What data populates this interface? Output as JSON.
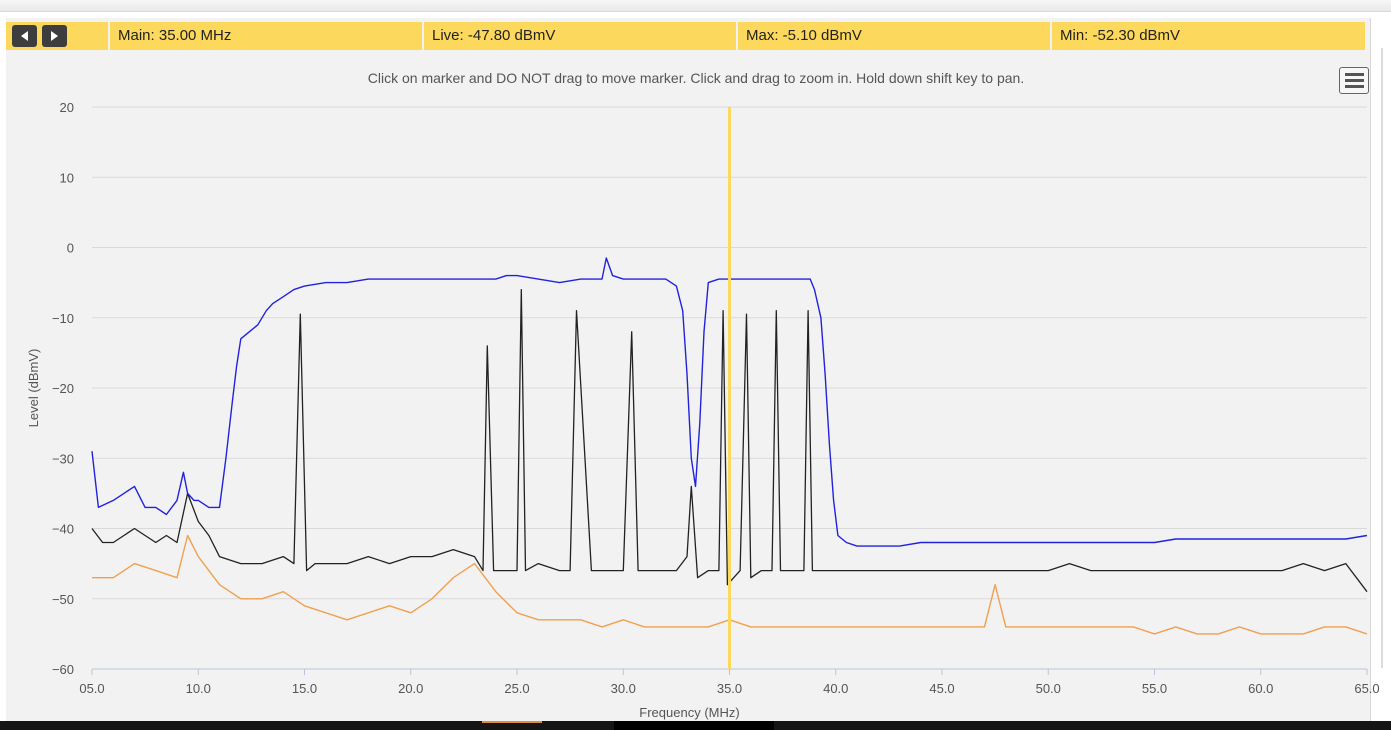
{
  "readouts": {
    "main": "Main: 35.00 MHz",
    "live": "Live: -47.80 dBmV",
    "max": "Max: -5.10 dBmV",
    "min": "Min: -52.30 dBmV"
  },
  "hint": "Click on marker and DO NOT drag to move marker. Click and drag to zoom in. Hold down shift key to pan.",
  "icons": {
    "prev": "chevron-left-icon",
    "next": "chevron-right-icon",
    "menu": "hamburger-menu-icon"
  },
  "chart_data": {
    "type": "line",
    "xlabel": "Frequency (MHz)",
    "ylabel": "Level (dBmV)",
    "xlim": [
      5,
      65
    ],
    "ylim": [
      -60,
      20
    ],
    "x_ticks": [
      5,
      10,
      15,
      20,
      25,
      30,
      35,
      40,
      45,
      50,
      55,
      60,
      65
    ],
    "x_tick_labels": [
      "05.0",
      "10.0",
      "15.0",
      "20.0",
      "25.0",
      "30.0",
      "35.0",
      "40.0",
      "45.0",
      "50.0",
      "55.0",
      "60.0",
      "65.0"
    ],
    "y_ticks": [
      20,
      10,
      0,
      -10,
      -20,
      -30,
      -40,
      -50,
      -60
    ],
    "y_tick_labels": [
      "20",
      "10",
      "0",
      "−10",
      "−20",
      "−30",
      "−40",
      "−50",
      "−60"
    ],
    "grid": true,
    "marker_x": 35.0,
    "colors": {
      "max": "#2222dd",
      "live": "#222222",
      "min": "#f0a050",
      "marker": "#fcd95c"
    },
    "series": [
      {
        "role": "max",
        "x": [
          5.0,
          5.3,
          6.0,
          6.5,
          7.0,
          7.5,
          8.0,
          8.5,
          9.0,
          9.3,
          9.5,
          9.8,
          10.0,
          10.5,
          11.0,
          11.3,
          11.6,
          11.8,
          12.0,
          12.4,
          12.8,
          13.2,
          13.5,
          14.0,
          14.5,
          15.0,
          16.0,
          17.0,
          18.0,
          19.0,
          20.0,
          21.0,
          22.0,
          23.0,
          24.0,
          24.5,
          25.0,
          26.0,
          27.0,
          28.0,
          29.0,
          29.2,
          29.5,
          30.0,
          31.0,
          32.0,
          32.5,
          32.8,
          33.0,
          33.2,
          33.4,
          33.6,
          33.8,
          34.0,
          34.5,
          35.0,
          35.5,
          36.0,
          37.0,
          38.0,
          38.5,
          38.8,
          39.0,
          39.3,
          39.5,
          39.7,
          39.9,
          40.1,
          40.5,
          41.0,
          42.0,
          43.0,
          44.0,
          45.0,
          46.0,
          47.0,
          48.0,
          49.0,
          50.0,
          51.0,
          52.0,
          53.0,
          54.0,
          55.0,
          56.0,
          57.0,
          58.0,
          59.0,
          60.0,
          61.0,
          62.0,
          63.0,
          64.0,
          65.0
        ],
        "y": [
          -29,
          -37,
          -36,
          -35,
          -34,
          -37,
          -37,
          -38,
          -36,
          -32,
          -35,
          -36,
          -36,
          -37,
          -37,
          -30,
          -22,
          -17,
          -13,
          -12,
          -11,
          -9,
          -8,
          -7,
          -6,
          -5.5,
          -5,
          -5,
          -4.5,
          -4.5,
          -4.5,
          -4.5,
          -4.5,
          -4.5,
          -4.5,
          -4,
          -4,
          -4.5,
          -5,
          -4.5,
          -4.5,
          -1.5,
          -4,
          -4.5,
          -4.5,
          -4.5,
          -5.5,
          -9,
          -18,
          -30,
          -34,
          -25,
          -12,
          -5,
          -4.5,
          -4.5,
          -4.5,
          -4.5,
          -4.5,
          -4.5,
          -4.5,
          -4.5,
          -6,
          -10,
          -18,
          -28,
          -36,
          -41,
          -42,
          -42.5,
          -42.5,
          -42.5,
          -42,
          -42,
          -42,
          -42,
          -42,
          -42,
          -42,
          -42,
          -42,
          -42,
          -42,
          -42,
          -41.5,
          -41.5,
          -41.5,
          -41.5,
          -41.5,
          -41.5,
          -41.5,
          -41.5,
          -41.5,
          -41
        ]
      },
      {
        "role": "live",
        "x": [
          5.0,
          5.5,
          6.0,
          6.5,
          7.0,
          7.5,
          8.0,
          8.5,
          9.0,
          9.5,
          10.0,
          10.5,
          11.0,
          12.0,
          13.0,
          14.0,
          14.5,
          14.8,
          15.1,
          15.5,
          16.0,
          17.0,
          18.0,
          19.0,
          20.0,
          21.0,
          22.0,
          23.0,
          23.4,
          23.6,
          23.9,
          24.5,
          25.0,
          25.2,
          25.4,
          26.0,
          27.0,
          27.5,
          27.8,
          28.5,
          29.5,
          30.0,
          30.4,
          30.7,
          31.5,
          32.5,
          33.0,
          33.2,
          33.5,
          34.0,
          34.5,
          34.7,
          34.9,
          35.5,
          35.8,
          36.0,
          36.5,
          37.0,
          37.2,
          37.4,
          38.0,
          38.5,
          38.7,
          38.9,
          39.5,
          40.0,
          41.0,
          42.0,
          43.0,
          44.0,
          45.0,
          46.0,
          47.0,
          48.0,
          49.0,
          50.0,
          51.0,
          52.0,
          53.0,
          54.0,
          55.0,
          56.0,
          57.0,
          58.0,
          59.0,
          60.0,
          61.0,
          62.0,
          63.0,
          64.0,
          65.0
        ],
        "y": [
          -40,
          -42,
          -42,
          -41,
          -40,
          -41,
          -42,
          -41,
          -42,
          -35,
          -39,
          -41,
          -44,
          -45,
          -45,
          -44,
          -45,
          -9.5,
          -46,
          -45,
          -45,
          -45,
          -44,
          -45,
          -44,
          -44,
          -43,
          -44,
          -46,
          -14,
          -46,
          -46,
          -46,
          -6,
          -46,
          -45,
          -46,
          -46,
          -9,
          -46,
          -46,
          -46,
          -12,
          -46,
          -46,
          -46,
          -44,
          -34,
          -47,
          -46,
          -46,
          -9,
          -48,
          -46,
          -9.5,
          -47,
          -46,
          -46,
          -9,
          -46,
          -46,
          -46,
          -9,
          -46,
          -46,
          -46,
          -46,
          -46,
          -46,
          -46,
          -46,
          -46,
          -46,
          -46,
          -46,
          -46,
          -45,
          -46,
          -46,
          -46,
          -46,
          -46,
          -46,
          -46,
          -46,
          -46,
          -46,
          -45,
          -46,
          -45,
          -49
        ]
      },
      {
        "role": "min",
        "x": [
          5.0,
          6.0,
          7.0,
          8.0,
          9.0,
          9.5,
          10.0,
          11.0,
          12.0,
          13.0,
          14.0,
          15.0,
          16.0,
          17.0,
          18.0,
          19.0,
          20.0,
          21.0,
          22.0,
          23.0,
          24.0,
          25.0,
          26.0,
          27.0,
          28.0,
          29.0,
          30.0,
          31.0,
          32.0,
          33.0,
          34.0,
          35.0,
          36.0,
          37.0,
          38.0,
          39.0,
          40.0,
          41.0,
          42.0,
          43.0,
          44.0,
          45.0,
          46.0,
          47.0,
          47.5,
          48.0,
          49.0,
          50.0,
          51.0,
          52.0,
          53.0,
          54.0,
          55.0,
          56.0,
          57.0,
          58.0,
          59.0,
          60.0,
          61.0,
          62.0,
          63.0,
          64.0,
          65.0
        ],
        "y": [
          -47,
          -47,
          -45,
          -46,
          -47,
          -41,
          -44,
          -48,
          -50,
          -50,
          -49,
          -51,
          -52,
          -53,
          -52,
          -51,
          -52,
          -50,
          -47,
          -45,
          -49,
          -52,
          -53,
          -53,
          -53,
          -54,
          -53,
          -54,
          -54,
          -54,
          -54,
          -53,
          -54,
          -54,
          -54,
          -54,
          -54,
          -54,
          -54,
          -54,
          -54,
          -54,
          -54,
          -54,
          -48,
          -54,
          -54,
          -54,
          -54,
          -54,
          -54,
          -54,
          -55,
          -54,
          -55,
          -55,
          -54,
          -55,
          -55,
          -55,
          -54,
          -54,
          -55
        ]
      }
    ]
  }
}
